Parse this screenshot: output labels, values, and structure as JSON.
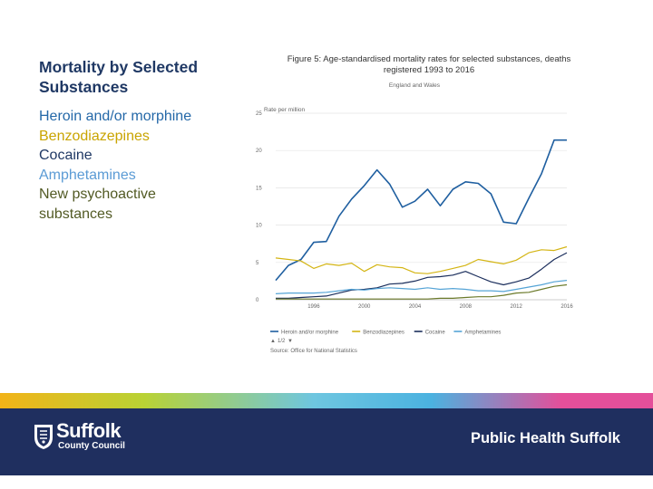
{
  "slide": {
    "title": "Mortality by Selected Substances",
    "list_items": [
      {
        "label": "Heroin and/or morphine",
        "color": "#2468a8"
      },
      {
        "label": "Benzodiazepines",
        "color": "#c9a400"
      },
      {
        "label": "Cocaine",
        "color": "#1f3864"
      },
      {
        "label": "Amphetamines",
        "color": "#5b9bd5"
      },
      {
        "label": "New psychoactive substances",
        "color": "#525a24"
      }
    ]
  },
  "chart_data": {
    "type": "line",
    "title": "Figure 5: Age-standardised mortality rates for selected substances, deaths registered 1993 to 2016",
    "subtitle": "England and Wales",
    "ylabel": "Rate per million",
    "xlabel": "",
    "ylim": [
      0,
      25
    ],
    "xlim": [
      1993,
      2016
    ],
    "yticks": [
      0,
      5,
      10,
      15,
      20,
      25
    ],
    "xticks": [
      1996,
      2000,
      2004,
      2008,
      2012,
      2016
    ],
    "grid": true,
    "x": [
      1993,
      1994,
      1995,
      1996,
      1997,
      1998,
      1999,
      2000,
      2001,
      2002,
      2003,
      2004,
      2005,
      2006,
      2007,
      2008,
      2009,
      2010,
      2011,
      2012,
      2013,
      2014,
      2015,
      2016
    ],
    "series": [
      {
        "name": "Heroin and/or morphine",
        "color": "#1f5fa0",
        "values": [
          2.6,
          4.6,
          5.4,
          7.7,
          7.8,
          11.2,
          13.5,
          15.3,
          17.4,
          15.5,
          12.4,
          13.2,
          14.8,
          12.6,
          14.8,
          15.8,
          15.6,
          14.2,
          10.4,
          10.2,
          13.6,
          16.9,
          21.4,
          21.4
        ]
      },
      {
        "name": "Benzodiazepines",
        "color": "#d4b514",
        "values": [
          5.6,
          5.4,
          5.2,
          4.2,
          4.8,
          4.6,
          4.9,
          3.8,
          4.7,
          4.4,
          4.3,
          3.6,
          3.5,
          3.8,
          4.2,
          4.6,
          5.4,
          5.1,
          4.8,
          5.3,
          6.3,
          6.7,
          6.6,
          7.1
        ]
      },
      {
        "name": "Cocaine",
        "color": "#1b2e5c",
        "values": [
          0.2,
          0.2,
          0.3,
          0.4,
          0.5,
          0.9,
          1.3,
          1.4,
          1.6,
          2.1,
          2.2,
          2.5,
          3.0,
          3.1,
          3.3,
          3.8,
          3.1,
          2.4,
          2.0,
          2.4,
          2.9,
          4.1,
          5.4,
          6.3
        ]
      },
      {
        "name": "Amphetamines",
        "color": "#55a4d6",
        "values": [
          0.8,
          0.9,
          0.9,
          0.9,
          1.0,
          1.2,
          1.4,
          1.3,
          1.5,
          1.6,
          1.5,
          1.4,
          1.6,
          1.4,
          1.5,
          1.4,
          1.2,
          1.2,
          1.1,
          1.4,
          1.7,
          2.0,
          2.4,
          2.6
        ]
      },
      {
        "name": "New psychoactive substances",
        "color": "#6b7a2a",
        "values": [
          0.1,
          0.1,
          0.1,
          0.1,
          0.1,
          0.1,
          0.1,
          0.1,
          0.1,
          0.1,
          0.1,
          0.1,
          0.1,
          0.2,
          0.2,
          0.3,
          0.4,
          0.4,
          0.6,
          0.9,
          1.0,
          1.4,
          1.8,
          2.0
        ]
      }
    ],
    "legend_placement": "bottom",
    "pager": "1/2",
    "source": "Source: Office for National Statistics"
  },
  "footer": {
    "org_name": "Suffolk",
    "org_sub": "County Council",
    "dept": "Public Health Suffolk",
    "background": "#1f2f5f"
  }
}
